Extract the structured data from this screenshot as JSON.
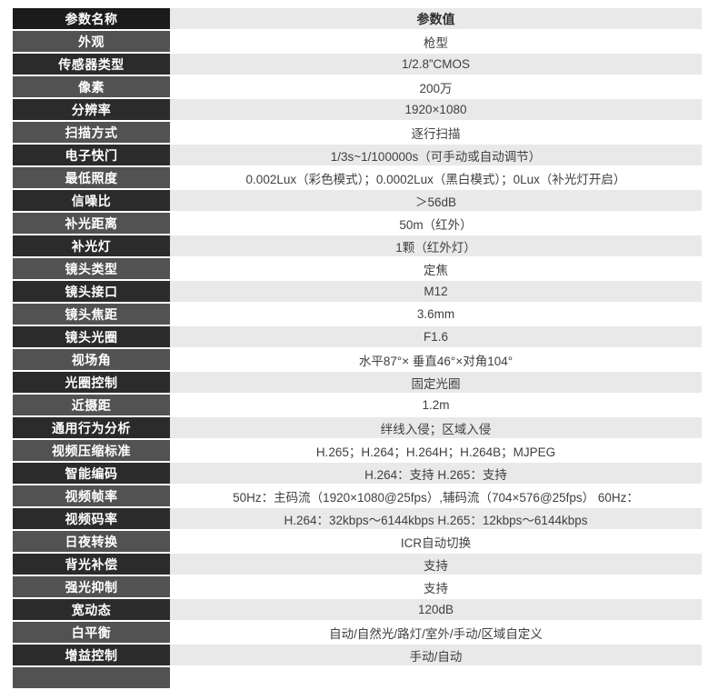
{
  "colors": {
    "header_name_bg": "#1b1b1b",
    "name_bg_dark": "#2b2b2b",
    "name_bg_gray": "#525252",
    "value_bg_stripe": "#e9e9e9",
    "value_bg_plain": "#ffffff",
    "name_text": "#ffffff",
    "value_text": "#404040"
  },
  "table": {
    "header": {
      "name_label": "参数名称",
      "value_label": "参数值"
    },
    "rows": [
      {
        "name": "外观",
        "value": "枪型"
      },
      {
        "name": "传感器类型",
        "value": "1/2.8”CMOS"
      },
      {
        "name": "像素",
        "value": "200万"
      },
      {
        "name": "分辨率",
        "value": "1920×1080"
      },
      {
        "name": "扫描方式",
        "value": "逐行扫描"
      },
      {
        "name": "电子快门",
        "value": "1/3s~1/100000s（可手动或自动调节）"
      },
      {
        "name": "最低照度",
        "value": "0.002Lux（彩色模式）；0.0002Lux（黑白模式）；0Lux（补光灯开启）"
      },
      {
        "name": "信噪比",
        "value": "＞56dB"
      },
      {
        "name": "补光距离",
        "value": "50m（红外）"
      },
      {
        "name": "补光灯",
        "value": "1颗（红外灯）"
      },
      {
        "name": "镜头类型",
        "value": "定焦"
      },
      {
        "name": "镜头接口",
        "value": "M12"
      },
      {
        "name": "镜头焦距",
        "value": "3.6mm"
      },
      {
        "name": "镜头光圈",
        "value": "F1.6"
      },
      {
        "name": "视场角",
        "value": "水平87°× 垂直46°×对角104°"
      },
      {
        "name": "光圈控制",
        "value": "固定光圈"
      },
      {
        "name": "近摄距",
        "value": "1.2m"
      },
      {
        "name": "通用行为分析",
        "value": "绊线入侵；区域入侵"
      },
      {
        "name": "视频压缩标准",
        "value": "H.265；H.264；H.264H；H.264B；MJPEG"
      },
      {
        "name": "智能编码",
        "value": "H.264：支持 H.265：支持"
      },
      {
        "name": "视频帧率",
        "value": "50Hz：主码流（1920×1080@25fps）,辅码流（704×576@25fps） 60Hz："
      },
      {
        "name": "视频码率",
        "value": "H.264：32kbps～6144kbps H.265：12kbps～6144kbps"
      },
      {
        "name": "日夜转换",
        "value": "ICR自动切换"
      },
      {
        "name": "背光补偿",
        "value": "支持"
      },
      {
        "name": "强光抑制",
        "value": "支持"
      },
      {
        "name": "宽动态",
        "value": "120dB"
      },
      {
        "name": "白平衡",
        "value": "自动/自然光/路灯/室外/手动/区域自定义"
      },
      {
        "name": "增益控制",
        "value": "手动/自动"
      }
    ]
  }
}
